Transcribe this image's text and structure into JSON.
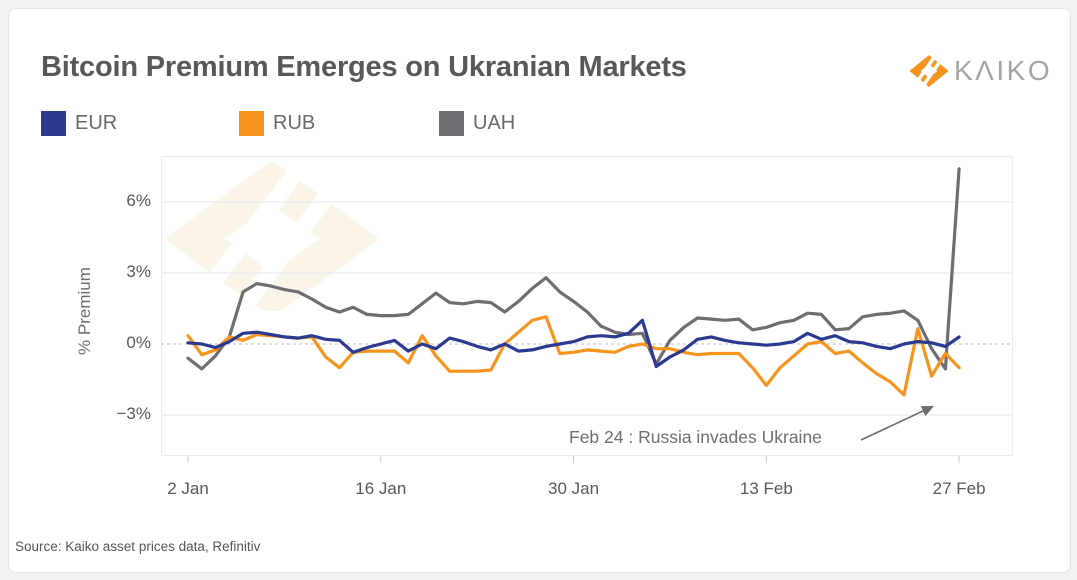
{
  "card": {
    "title": "Bitcoin Premium Emerges on Ukranian Markets",
    "source": "Source: Kaiko asset prices data, Refinitiv"
  },
  "logo": {
    "text": "KΛIKO",
    "mark_color": "#F7941D",
    "text_color": "#A4A4A7"
  },
  "chart_data": {
    "type": "line",
    "title": "Bitcoin Premium Emerges on Ukranian Markets",
    "ylabel": "% Premium",
    "ylim": [
      -4.7,
      7.9
    ],
    "grid": "horizontal-only",
    "zero_line_style": "dashed",
    "legend_position": "top-left",
    "x_ticks": [
      {
        "label": "2 Jan",
        "day": 0
      },
      {
        "label": "16 Jan",
        "day": 14
      },
      {
        "label": "30 Jan",
        "day": 28
      },
      {
        "label": "13 Feb",
        "day": 42
      },
      {
        "label": "27 Feb",
        "day": 56
      }
    ],
    "yticks": [
      {
        "label": "6%",
        "value": 6
      },
      {
        "label": "3%",
        "value": 3
      },
      {
        "label": "0%",
        "value": 0
      },
      {
        "label": "−3%",
        "value": -3
      }
    ],
    "annotation": {
      "text": "Feb 24 : Russia invades Ukraine"
    },
    "series": [
      {
        "name": "EUR",
        "color": "#2B3A90",
        "values": [
          0.05,
          0.0,
          -0.15,
          0.1,
          0.45,
          0.5,
          0.4,
          0.3,
          0.25,
          0.35,
          0.2,
          0.15,
          -0.35,
          -0.15,
          0.0,
          0.15,
          -0.3,
          0.0,
          -0.2,
          0.25,
          0.1,
          -0.1,
          -0.25,
          0.0,
          -0.3,
          -0.25,
          -0.1,
          0.0,
          0.1,
          0.3,
          0.35,
          0.3,
          0.45,
          1.0,
          -0.95,
          -0.55,
          -0.25,
          0.2,
          0.3,
          0.15,
          0.05,
          0.0,
          -0.05,
          0.0,
          0.1,
          0.45,
          0.2,
          0.35,
          0.1,
          0.05,
          -0.1,
          -0.2,
          0.0,
          0.1,
          0.05,
          -0.1,
          0.3
        ]
      },
      {
        "name": "RUB",
        "color": "#F7941D",
        "values": [
          0.35,
          -0.45,
          -0.25,
          0.3,
          0.15,
          0.4,
          0.35,
          0.3,
          0.25,
          0.3,
          -0.55,
          -1.0,
          -0.35,
          -0.3,
          -0.3,
          -0.3,
          -0.8,
          0.35,
          -0.5,
          -1.15,
          -1.15,
          -1.15,
          -1.1,
          0.0,
          0.5,
          1.0,
          1.15,
          -0.4,
          -0.35,
          -0.25,
          -0.3,
          -0.35,
          -0.1,
          0.0,
          -0.2,
          -0.2,
          -0.35,
          -0.45,
          -0.4,
          -0.4,
          -0.4,
          -1.0,
          -1.75,
          -1.0,
          -0.5,
          0.0,
          0.1,
          -0.4,
          -0.3,
          -0.8,
          -1.25,
          -1.6,
          -2.15,
          0.65,
          -1.35,
          -0.4,
          -1.0
        ]
      },
      {
        "name": "UAH",
        "color": "#6D6E71",
        "values": [
          -0.6,
          -1.05,
          -0.5,
          0.3,
          2.2,
          2.55,
          2.45,
          2.3,
          2.2,
          1.9,
          1.55,
          1.35,
          1.55,
          1.25,
          1.2,
          1.2,
          1.25,
          1.7,
          2.15,
          1.75,
          1.7,
          1.8,
          1.75,
          1.35,
          1.8,
          2.35,
          2.8,
          2.2,
          1.8,
          1.35,
          0.75,
          0.5,
          0.4,
          0.45,
          -0.85,
          0.15,
          0.7,
          1.1,
          1.05,
          1.0,
          1.05,
          0.6,
          0.7,
          0.9,
          1.0,
          1.3,
          1.25,
          0.6,
          0.65,
          1.15,
          1.25,
          1.3,
          1.4,
          1.0,
          -0.2,
          -1.05,
          7.4
        ]
      }
    ]
  }
}
